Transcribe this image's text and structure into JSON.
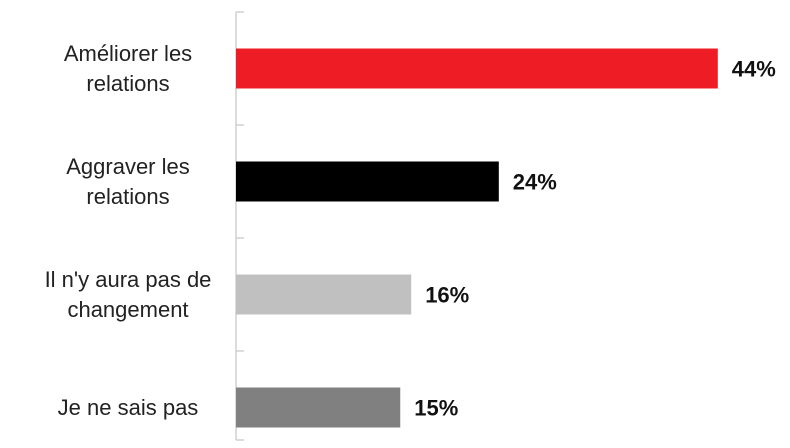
{
  "chart_data": {
    "type": "hbar",
    "categories": [
      "Améliorer les relations",
      "Aggraver les relations",
      "Il n'y aura pas de changement",
      "Je ne sais pas"
    ],
    "values": [
      44,
      24,
      16,
      15
    ],
    "value_labels": [
      "44%",
      "24%",
      "16%",
      "15%"
    ],
    "colors": [
      "#ee1c25",
      "#000000",
      "#c0c0c0",
      "#808080"
    ]
  }
}
